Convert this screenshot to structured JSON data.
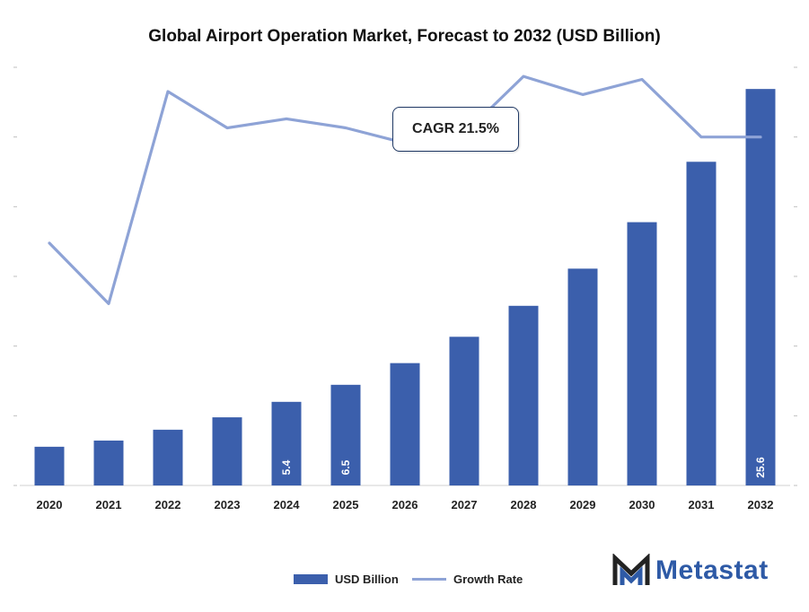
{
  "chart_data": {
    "type": "bar",
    "title": "Global Airport Operation Market, Forecast to 2032 (USD Billion)",
    "categories": [
      "2020",
      "2021",
      "2022",
      "2023",
      "2024",
      "2025",
      "2026",
      "2027",
      "2028",
      "2029",
      "2030",
      "2031",
      "2032"
    ],
    "series": [
      {
        "name": "USD Billion",
        "type": "bar",
        "axis": "left",
        "values": [
          2.5,
          2.9,
          3.6,
          4.4,
          5.4,
          6.5,
          7.9,
          9.6,
          11.6,
          14.0,
          17.0,
          20.9,
          25.6
        ],
        "labels": [
          "",
          "",
          "",
          "",
          "5.4",
          "6.5",
          "",
          "",
          "",
          "",
          "",
          "",
          "25.6"
        ]
      },
      {
        "name": "Growth Rate",
        "type": "line",
        "axis": "right",
        "values": [
          17.0,
          15.0,
          22.0,
          20.8,
          21.1,
          20.8,
          20.3,
          20.6,
          22.5,
          21.9,
          22.4,
          20.5,
          20.5
        ]
      }
    ],
    "ylim_left": [
      0,
      27
    ],
    "ylim_right": [
      9.0,
      22.8
    ],
    "grid": false,
    "legend": "bottom-center",
    "annotation": "CAGR 21.5%",
    "colors": {
      "bar": "#3b5fac",
      "line": "#8ea3d6"
    }
  },
  "legend": {
    "bar_label": "USD Billion",
    "line_label": "Growth Rate"
  },
  "logo": {
    "text": "Metastat",
    "icon": "metastat-m-icon"
  }
}
